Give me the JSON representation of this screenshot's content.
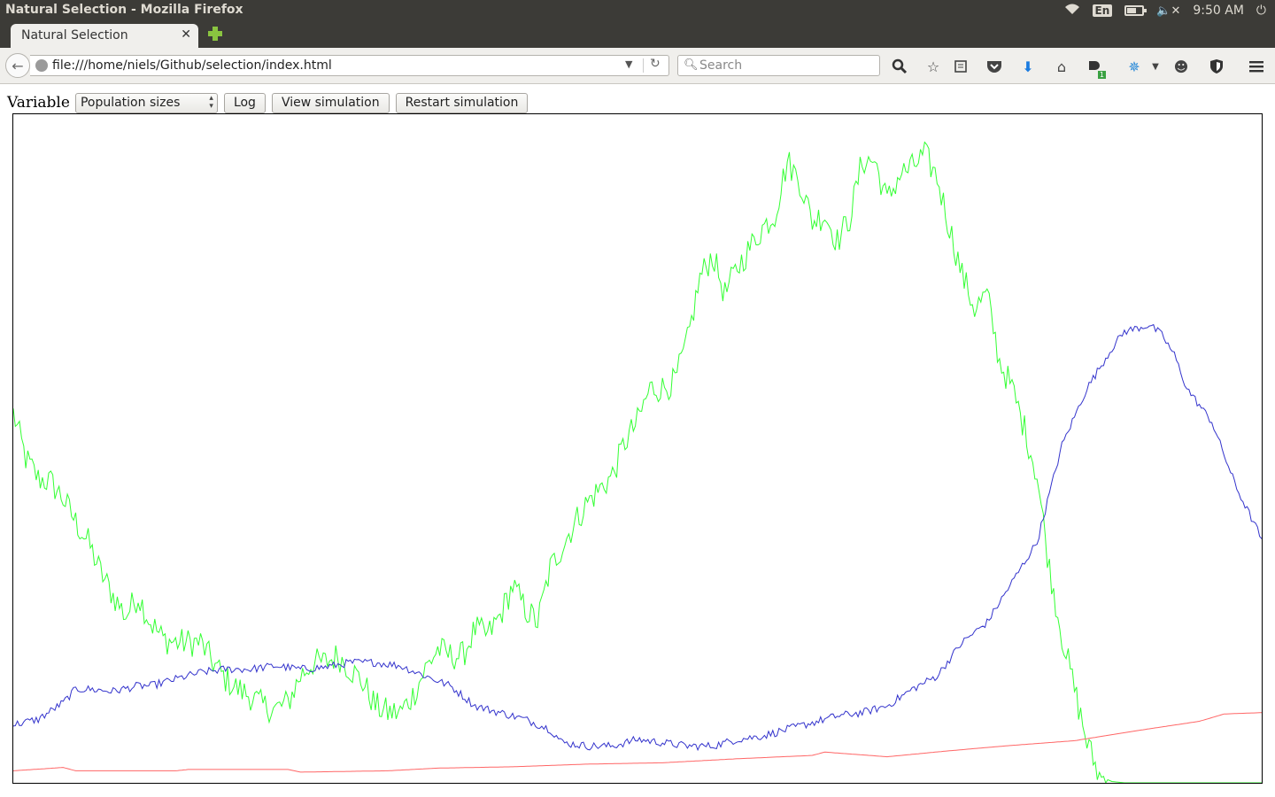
{
  "os": {
    "window_title": "Natural Selection - Mozilla Firefox",
    "lang": "En",
    "clock": "9:50 AM",
    "icons": [
      "wifi-icon",
      "keyboard-lang-icon",
      "battery-icon",
      "volume-muted-icon",
      "power-icon"
    ],
    "battery_level": 0.6
  },
  "browser": {
    "tab_label": "Natural Selection",
    "url": "file:///home/niels/Github/selection/index.html",
    "search_placeholder": "Search",
    "addon_badge": "1",
    "toolbar_icons": [
      "zoom-icon",
      "bookmark-star-icon",
      "reading-list-icon",
      "pocket-icon",
      "download-icon",
      "home-icon",
      "addon-icon",
      "network-icon",
      "chat-icon",
      "shield-icon",
      "menu-icon"
    ]
  },
  "controls": {
    "variable_label": "Variable",
    "select_value": "Population sizes",
    "log_button": "Log",
    "view_button": "View simulation",
    "restart_button": "Restart simulation"
  },
  "chart_data": {
    "type": "line",
    "xlim": [
      0,
      100
    ],
    "ylim": [
      0,
      100
    ],
    "grid": false,
    "series": [
      {
        "color": "#33ff33",
        "noise": 2.2,
        "points": [
          [
            0,
            55.3
          ],
          [
            1,
            48.5
          ],
          [
            2,
            45.5
          ],
          [
            3,
            45.0
          ],
          [
            4,
            42.5
          ],
          [
            5,
            39.0
          ],
          [
            6,
            36.0
          ],
          [
            7,
            31.5
          ],
          [
            8,
            28.0
          ],
          [
            9,
            25.0
          ],
          [
            10,
            28.0
          ],
          [
            11,
            24.0
          ],
          [
            12,
            21.5
          ],
          [
            13,
            21.0
          ],
          [
            14,
            21.0
          ],
          [
            15,
            21.0
          ],
          [
            16,
            18.0
          ],
          [
            17,
            15.5
          ],
          [
            18,
            14.0
          ],
          [
            19,
            13.0
          ],
          [
            20,
            11.5
          ],
          [
            21,
            11.0
          ],
          [
            22,
            12.0
          ],
          [
            23,
            16.0
          ],
          [
            24,
            18.0
          ],
          [
            25,
            18.0
          ],
          [
            26,
            19.0
          ],
          [
            27,
            17.0
          ],
          [
            28,
            15.0
          ],
          [
            29,
            11.5
          ],
          [
            30,
            10.5
          ],
          [
            31,
            10.5
          ],
          [
            32,
            13.0
          ],
          [
            33,
            17.0
          ],
          [
            34,
            20.0
          ],
          [
            35,
            19.0
          ],
          [
            36,
            19.0
          ],
          [
            37,
            23.0
          ],
          [
            38,
            22.0
          ],
          [
            39,
            25.0
          ],
          [
            40,
            29.5
          ],
          [
            41,
            26.0
          ],
          [
            42,
            24.0
          ],
          [
            43,
            32.0
          ],
          [
            44,
            35.5
          ],
          [
            45,
            39.0
          ],
          [
            46,
            42.0
          ],
          [
            47,
            44.0
          ],
          [
            48,
            46.0
          ],
          [
            49,
            51.0
          ],
          [
            50,
            54.0
          ],
          [
            51,
            59.0
          ],
          [
            52,
            59.0
          ],
          [
            53,
            60.0
          ],
          [
            54,
            66.0
          ],
          [
            55,
            75.5
          ],
          [
            56,
            79.0
          ],
          [
            57,
            73.0
          ],
          [
            58,
            77.0
          ],
          [
            59,
            80.0
          ],
          [
            60,
            83.0
          ],
          [
            61,
            85.0
          ],
          [
            62,
            93.0
          ],
          [
            63,
            90.0
          ],
          [
            64,
            84.0
          ],
          [
            65,
            85.0
          ],
          [
            66,
            81.0
          ],
          [
            67,
            84.5
          ],
          [
            68,
            93.0
          ],
          [
            69,
            93.0
          ],
          [
            70,
            87.0
          ],
          [
            71,
            91.0
          ],
          [
            72,
            92.0
          ],
          [
            73,
            94.0
          ],
          [
            74,
            90.5
          ],
          [
            75,
            83.0
          ],
          [
            76,
            76.0
          ],
          [
            77,
            71.0
          ],
          [
            78,
            73.0
          ],
          [
            79,
            63.0
          ],
          [
            80,
            59.0
          ],
          [
            81,
            53.0
          ],
          [
            82,
            46.0
          ],
          [
            83,
            32.0
          ],
          [
            84,
            22.0
          ],
          [
            85,
            14.0
          ],
          [
            86,
            6.0
          ],
          [
            87,
            1.0
          ],
          [
            88,
            0.2
          ],
          [
            89,
            0.0
          ],
          [
            90,
            0.0
          ],
          [
            100,
            0.0
          ]
        ]
      },
      {
        "color": "#3333cc",
        "noise": 0.6,
        "points": [
          [
            0,
            8.7
          ],
          [
            2,
            9.5
          ],
          [
            4,
            12.0
          ],
          [
            5,
            14.0
          ],
          [
            6,
            14.0
          ],
          [
            8,
            13.7
          ],
          [
            10,
            14.5
          ],
          [
            11,
            14.5
          ],
          [
            13,
            15.5
          ],
          [
            15,
            16.5
          ],
          [
            17,
            17.0
          ],
          [
            19,
            17.0
          ],
          [
            21,
            17.5
          ],
          [
            23,
            17.0
          ],
          [
            25,
            17.3
          ],
          [
            27,
            18.0
          ],
          [
            29,
            18.0
          ],
          [
            31,
            17.5
          ],
          [
            33,
            16.0
          ],
          [
            35,
            14.5
          ],
          [
            37,
            11.5
          ],
          [
            39,
            10.5
          ],
          [
            41,
            9.5
          ],
          [
            43,
            8.0
          ],
          [
            44,
            6.0
          ],
          [
            46,
            5.5
          ],
          [
            48,
            5.5
          ],
          [
            50,
            6.5
          ],
          [
            52,
            6.0
          ],
          [
            54,
            5.5
          ],
          [
            56,
            5.5
          ],
          [
            58,
            6.5
          ],
          [
            60,
            7.0
          ],
          [
            62,
            8.0
          ],
          [
            64,
            9.0
          ],
          [
            66,
            10.0
          ],
          [
            68,
            10.5
          ],
          [
            70,
            11.5
          ],
          [
            72,
            14.0
          ],
          [
            74,
            16.0
          ],
          [
            76,
            21.0
          ],
          [
            78,
            24.0
          ],
          [
            80,
            30.0
          ],
          [
            82,
            36.0
          ],
          [
            84,
            50.5
          ],
          [
            86,
            59.0
          ],
          [
            88,
            65.0
          ],
          [
            89,
            67.5
          ],
          [
            90,
            68.0
          ],
          [
            91,
            68.5
          ],
          [
            92,
            67.0
          ],
          [
            93,
            64.0
          ],
          [
            94,
            59.0
          ],
          [
            96,
            54.0
          ],
          [
            98,
            44.0
          ],
          [
            100,
            36.5
          ]
        ]
      },
      {
        "color": "#ff6666",
        "noise": 0.0,
        "points": [
          [
            0,
            1.8
          ],
          [
            4,
            2.3
          ],
          [
            5,
            1.8
          ],
          [
            13,
            1.8
          ],
          [
            14,
            2.0
          ],
          [
            22,
            2.0
          ],
          [
            23,
            1.6
          ],
          [
            30,
            1.8
          ],
          [
            34,
            2.2
          ],
          [
            40,
            2.4
          ],
          [
            46,
            2.8
          ],
          [
            52,
            3.0
          ],
          [
            58,
            3.6
          ],
          [
            64,
            4.1
          ],
          [
            65,
            4.6
          ],
          [
            70,
            3.9
          ],
          [
            75,
            4.8
          ],
          [
            80,
            5.6
          ],
          [
            85,
            6.3
          ],
          [
            90,
            7.8
          ],
          [
            95,
            9.2
          ],
          [
            97,
            10.3
          ],
          [
            100,
            10.5
          ]
        ]
      }
    ]
  }
}
